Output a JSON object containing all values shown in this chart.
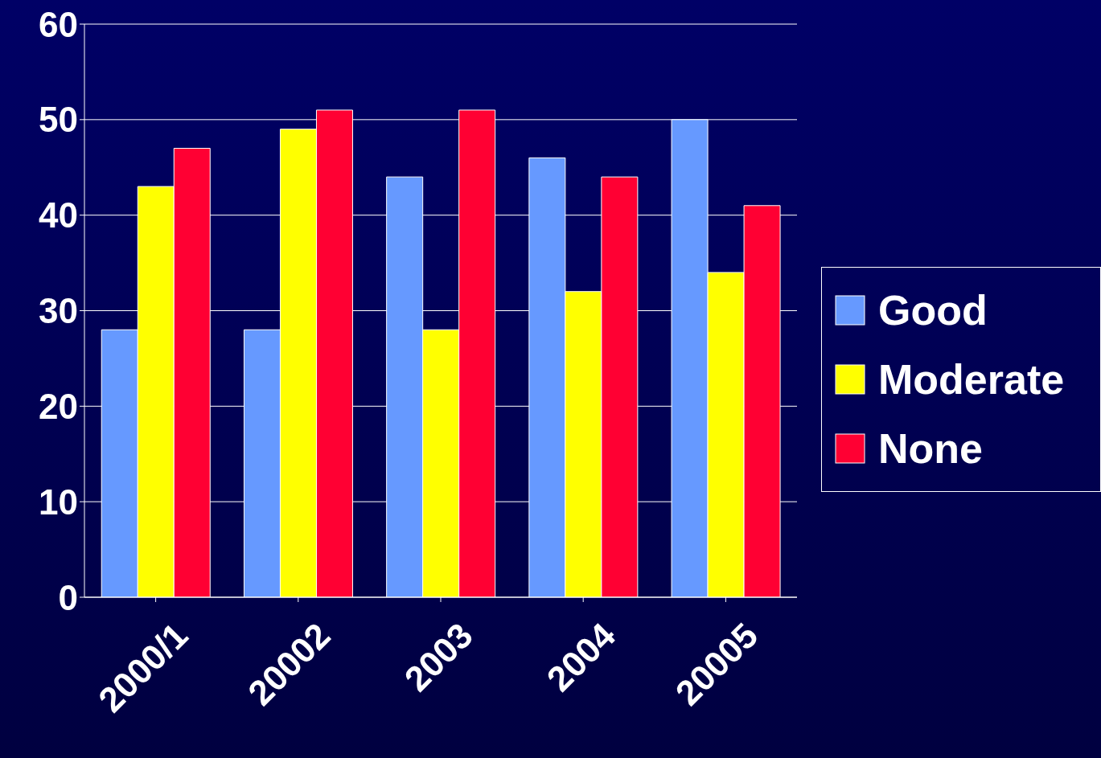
{
  "chart_data": {
    "type": "bar",
    "categories": [
      "2000/1",
      "20002",
      "2003",
      "2004",
      "20005"
    ],
    "series": [
      {
        "name": "Good",
        "color": "#6699ff",
        "values": [
          28,
          28,
          44,
          46,
          50
        ]
      },
      {
        "name": "Moderate",
        "color": "#ffff00",
        "values": [
          43,
          49,
          28,
          32,
          34
        ]
      },
      {
        "name": "None",
        "color": "#ff0033",
        "values": [
          47,
          51,
          51,
          44,
          41
        ]
      }
    ],
    "ylim": [
      0,
      60
    ],
    "yticks": [
      0,
      10,
      20,
      30,
      40,
      50,
      60
    ],
    "grid": "y",
    "legend": "right"
  }
}
